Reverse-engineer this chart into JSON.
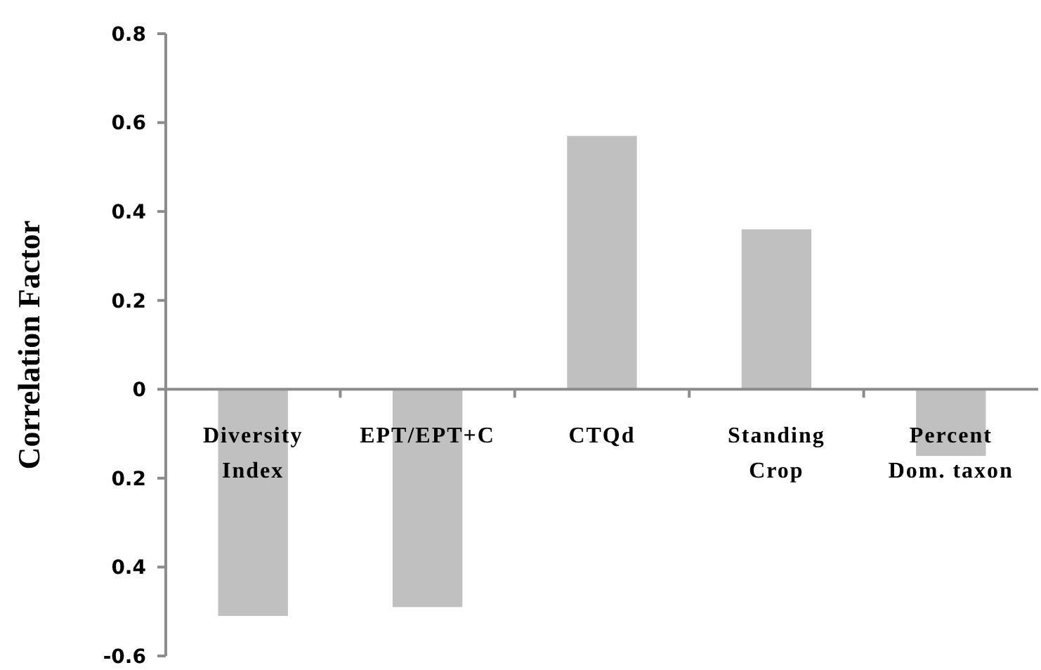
{
  "chart_data": {
    "type": "bar",
    "ylabel": "Correlation Factor",
    "categories": [
      "Diversity Index",
      "EPT/EPT+C",
      "CTQd",
      "Standing Crop",
      "Percent Dom. taxon"
    ],
    "values": [
      -0.51,
      -0.49,
      0.57,
      0.36,
      -0.15
    ],
    "color": "#c0c0c0",
    "ylim": [
      -0.6,
      0.8
    ],
    "yticks": [
      {
        "value": 0.8,
        "label": "0.8"
      },
      {
        "value": 0.6,
        "label": "0.6"
      },
      {
        "value": 0.4,
        "label": "0.4"
      },
      {
        "value": 0.2,
        "label": "0.2"
      },
      {
        "value": 0,
        "label": "0"
      },
      {
        "value": -0.2,
        "label": "0.2"
      },
      {
        "value": -0.4,
        "label": "0.4"
      },
      {
        "value": -0.6,
        "label": "-0.6"
      }
    ],
    "grid": false
  }
}
